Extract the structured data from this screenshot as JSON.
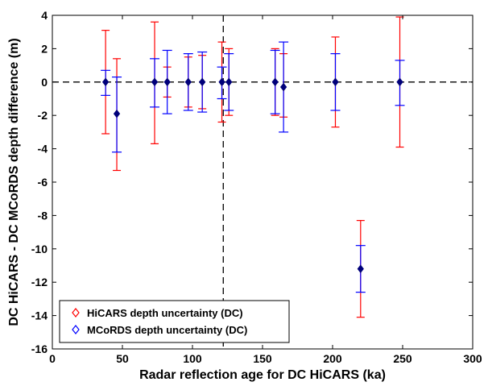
{
  "chart_data": {
    "type": "scatter",
    "xlabel": "Radar reflection age for DC HiCARS (ka)",
    "ylabel": "DC HiCARS - DC MCoRDS  depth difference (m)",
    "xlim": [
      0,
      300
    ],
    "ylim": [
      -16,
      4
    ],
    "xticks": [
      "0",
      "50",
      "100",
      "150",
      "200",
      "250",
      "300"
    ],
    "yticks": [
      "4",
      "2",
      "0",
      "-2",
      "-4",
      "-6",
      "-8",
      "-10",
      "-12",
      "-14",
      "-16"
    ],
    "grid": false,
    "legend_position": "bottom-left",
    "reference_lines": {
      "horizontal_y": 0,
      "vertical_x": 122
    },
    "marker_value": {
      "x": [
        38,
        46,
        73,
        82,
        97,
        107,
        121,
        126,
        159,
        165,
        202,
        220,
        248
      ],
      "y": [
        0,
        -1.9,
        0,
        0,
        0,
        0,
        0,
        0,
        0,
        -0.3,
        0,
        -11.2,
        0
      ]
    },
    "series": [
      {
        "name": "HiCARS depth uncertainty (DC)",
        "color": "#ff0000",
        "marker": "diamond-open",
        "points": [
          {
            "x": 38,
            "lower": -3.1,
            "upper": 3.1
          },
          {
            "x": 46,
            "lower": -5.3,
            "upper": 1.4
          },
          {
            "x": 73,
            "lower": -3.7,
            "upper": 3.6
          },
          {
            "x": 82,
            "lower": -0.9,
            "upper": 0.9
          },
          {
            "x": 97,
            "lower": -1.5,
            "upper": 1.5
          },
          {
            "x": 107,
            "lower": -1.6,
            "upper": 1.6
          },
          {
            "x": 121,
            "lower": -2.4,
            "upper": 2.4
          },
          {
            "x": 126,
            "lower": -2.0,
            "upper": 2.0
          },
          {
            "x": 159,
            "lower": -2.0,
            "upper": 2.0
          },
          {
            "x": 165,
            "lower": -2.1,
            "upper": 1.7
          },
          {
            "x": 202,
            "lower": -2.7,
            "upper": 2.7
          },
          {
            "x": 220,
            "lower": -14.1,
            "upper": -8.3
          },
          {
            "x": 248,
            "lower": -3.9,
            "upper": 3.9
          }
        ]
      },
      {
        "name": "MCoRDS depth uncertainty (DC)",
        "color": "#0000ff",
        "marker": "diamond-open",
        "points": [
          {
            "x": 38,
            "lower": -0.8,
            "upper": 0.7
          },
          {
            "x": 46,
            "lower": -4.2,
            "upper": 0.3
          },
          {
            "x": 73,
            "lower": -1.5,
            "upper": 1.4
          },
          {
            "x": 82,
            "lower": -1.9,
            "upper": 1.9
          },
          {
            "x": 97,
            "lower": -1.7,
            "upper": 1.7
          },
          {
            "x": 107,
            "lower": -1.8,
            "upper": 1.8
          },
          {
            "x": 121,
            "lower": -1.0,
            "upper": 0.9
          },
          {
            "x": 126,
            "lower": -1.7,
            "upper": 1.7
          },
          {
            "x": 159,
            "lower": -1.9,
            "upper": 1.9
          },
          {
            "x": 165,
            "lower": -3.0,
            "upper": 2.4
          },
          {
            "x": 202,
            "lower": -1.7,
            "upper": 1.7
          },
          {
            "x": 220,
            "lower": -12.6,
            "upper": -9.8
          },
          {
            "x": 248,
            "lower": -1.4,
            "upper": 1.3
          }
        ]
      }
    ],
    "point_marker_color": "#00007a"
  }
}
